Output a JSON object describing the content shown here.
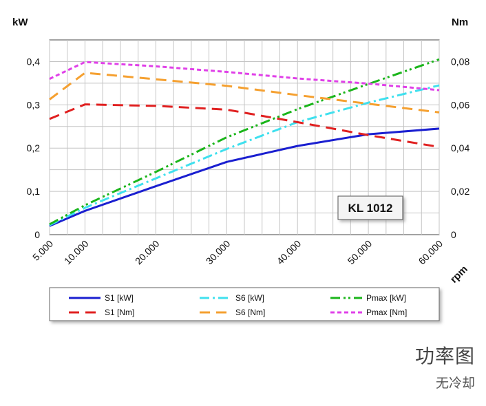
{
  "chart_data": {
    "type": "line",
    "x": [
      5000,
      10000,
      20000,
      30000,
      40000,
      50000,
      60000
    ],
    "x_tick_labels": [
      "5.000",
      "10.000",
      "20.000",
      "30.000",
      "40.000",
      "50.000",
      "60.000"
    ],
    "xlabel": "rpm",
    "xlim": [
      5000,
      60000
    ],
    "y_left_label": "kW",
    "y_left_ticks": [
      "0",
      "0,1",
      "0,2",
      "0,3",
      "0,4"
    ],
    "y_left_lim": [
      0,
      0.45
    ],
    "y_right_label": "Nm",
    "y_right_ticks": [
      "0",
      "0,02",
      "0,04",
      "0,06",
      "0,08"
    ],
    "y_right_lim": [
      0,
      0.09
    ],
    "grid": true,
    "legend_placement": "bottom",
    "annotation": "KL 1012",
    "series": [
      {
        "name": "S1 [kW]",
        "axis": "left",
        "color": "#1a1fd0",
        "dash": "solid",
        "values": [
          0.02,
          0.055,
          0.112,
          0.168,
          0.205,
          0.232,
          0.245
        ]
      },
      {
        "name": "S6 [kW]",
        "axis": "left",
        "color": "#3fe0ee",
        "dash": "dashdot",
        "values": [
          0.022,
          0.062,
          0.13,
          0.198,
          0.26,
          0.305,
          0.345
        ]
      },
      {
        "name": "Pmax [kW]",
        "axis": "left",
        "color": "#1ab51a",
        "dash": "dashdotdot",
        "values": [
          0.024,
          0.068,
          0.145,
          0.225,
          0.29,
          0.348,
          0.405
        ]
      },
      {
        "name": "S1 [Nm]",
        "axis": "right",
        "color": "#e02020",
        "dash": "dash",
        "values": [
          0.0535,
          0.0602,
          0.0595,
          0.0578,
          0.052,
          0.046,
          0.0405
        ]
      },
      {
        "name": "S6 [Nm]",
        "axis": "right",
        "color": "#f5a030",
        "dash": "dash",
        "values": [
          0.0625,
          0.0748,
          0.0718,
          0.0688,
          0.0645,
          0.0605,
          0.0565
        ]
      },
      {
        "name": "Pmax [Nm]",
        "axis": "right",
        "color": "#e040e8",
        "dash": "shortdash",
        "values": [
          0.072,
          0.0798,
          0.0778,
          0.0752,
          0.0722,
          0.0698,
          0.0668
        ]
      }
    ]
  },
  "caption": {
    "title": "功率图",
    "subtitle": "无冷却"
  }
}
